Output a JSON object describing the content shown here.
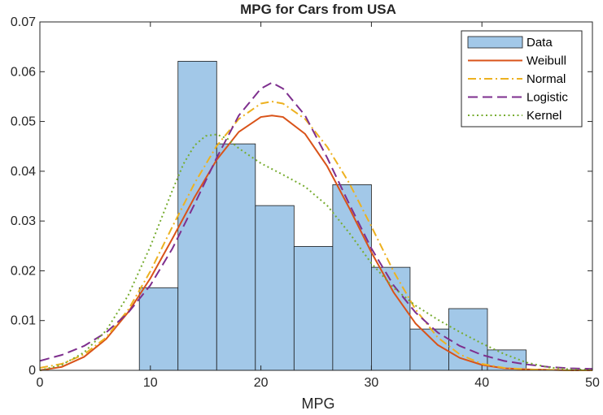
{
  "chart_data": {
    "type": "bar",
    "title": "MPG for Cars from USA",
    "xlabel": "MPG",
    "ylabel": "",
    "xlim": [
      0,
      50
    ],
    "ylim": [
      0,
      0.07
    ],
    "xticks": [
      0,
      10,
      20,
      30,
      40,
      50
    ],
    "xtick_labels": [
      "0",
      "10",
      "20",
      "30",
      "40",
      "50"
    ],
    "yticks": [
      0,
      0.01,
      0.02,
      0.03,
      0.04,
      0.05,
      0.06,
      0.07
    ],
    "ytick_labels": [
      "0",
      "0.01",
      "0.02",
      "0.03",
      "0.04",
      "0.05",
      "0.06",
      "0.07"
    ],
    "histogram": {
      "name": "Data",
      "bin_edges": [
        9,
        12.5,
        16,
        19.5,
        23,
        26.5,
        30,
        33.5,
        37,
        40.5,
        44
      ],
      "values": [
        0.0166,
        0.0621,
        0.0455,
        0.0331,
        0.0249,
        0.0373,
        0.0207,
        0.0083,
        0.0124,
        0.0041
      ]
    },
    "series": [
      {
        "name": "Weibull",
        "style": "solid",
        "color": "#D95319",
        "x": [
          0,
          2,
          4,
          6,
          8,
          10,
          12,
          14,
          16,
          18,
          20,
          21,
          22,
          24,
          26,
          28,
          30,
          32,
          34,
          36,
          38,
          40,
          42,
          44,
          46,
          48,
          50
        ],
        "y": [
          0,
          0.0007,
          0.0027,
          0.0063,
          0.0117,
          0.0185,
          0.0265,
          0.0348,
          0.0423,
          0.0479,
          0.0509,
          0.0512,
          0.0509,
          0.0475,
          0.041,
          0.0326,
          0.0237,
          0.0157,
          0.0094,
          0.0051,
          0.0025,
          0.0011,
          0.0004,
          0.0002,
          0.0001,
          0,
          0
        ]
      },
      {
        "name": "Normal",
        "style": "dashdot",
        "color": "#EDB120",
        "x": [
          0,
          2,
          4,
          6,
          8,
          10,
          12,
          14,
          16,
          18,
          20,
          21,
          22,
          24,
          26,
          28,
          30,
          32,
          34,
          36,
          38,
          40,
          42,
          44,
          46,
          48,
          50
        ],
        "y": [
          0.0005,
          0.0013,
          0.0032,
          0.0066,
          0.0122,
          0.0199,
          0.0289,
          0.0376,
          0.0451,
          0.0505,
          0.0536,
          0.054,
          0.0536,
          0.0505,
          0.0449,
          0.0376,
          0.0289,
          0.0199,
          0.0122,
          0.0066,
          0.0032,
          0.0013,
          0.0005,
          0.0002,
          0.0001,
          0,
          0
        ]
      },
      {
        "name": "Logistic",
        "style": "dashed",
        "color": "#7E2F8E",
        "x": [
          0,
          2,
          4,
          6,
          8,
          10,
          12,
          14,
          16,
          18,
          20,
          21,
          22,
          24,
          26,
          28,
          30,
          32,
          34,
          36,
          38,
          40,
          42,
          44,
          46,
          48,
          50
        ],
        "y": [
          0.0019,
          0.0031,
          0.0049,
          0.0076,
          0.0116,
          0.0171,
          0.0245,
          0.0334,
          0.0427,
          0.0512,
          0.0566,
          0.0578,
          0.0566,
          0.0512,
          0.0427,
          0.0334,
          0.0245,
          0.0171,
          0.0116,
          0.0076,
          0.0049,
          0.0031,
          0.0019,
          0.0012,
          0.0007,
          0.0004,
          0.0003
        ]
      },
      {
        "name": "Kernel",
        "style": "dotted",
        "color": "#77AC30",
        "x": [
          0,
          2,
          4,
          6,
          8,
          10,
          12,
          13,
          14,
          15,
          16,
          17,
          18,
          20,
          22,
          24,
          26,
          28,
          30,
          32,
          34,
          36,
          38,
          40,
          42,
          44,
          46,
          48,
          50
        ],
        "y": [
          0,
          0.0011,
          0.0036,
          0.008,
          0.0151,
          0.0249,
          0.0362,
          0.0415,
          0.0452,
          0.0471,
          0.0474,
          0.0465,
          0.0446,
          0.0416,
          0.0393,
          0.0369,
          0.0331,
          0.0276,
          0.0215,
          0.0166,
          0.013,
          0.0102,
          0.0077,
          0.0054,
          0.0033,
          0.0016,
          0.0006,
          0.0002,
          0.0001
        ]
      }
    ],
    "legend": {
      "position": "top-right",
      "entries": [
        "Data",
        "Weibull",
        "Normal",
        "Logistic",
        "Kernel"
      ]
    },
    "colors": {
      "bar_fill": "#A2C8E8",
      "bar_edge": "#1A1A1A",
      "axis": "#262626"
    }
  }
}
